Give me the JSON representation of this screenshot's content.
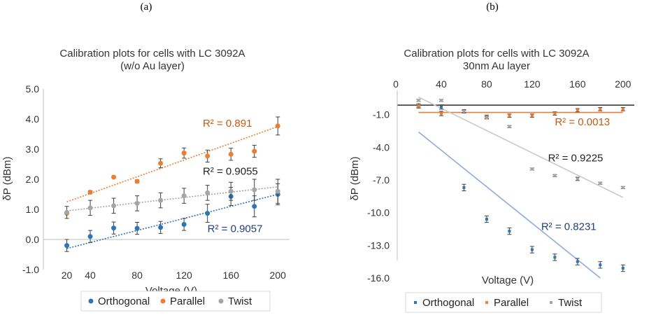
{
  "chart_data": [
    {
      "type": "scatter",
      "panel_label": "(a)",
      "title": "Calibration plots  for cells with LC 3092A",
      "subtitle": "(w/o Au layer)",
      "xlabel": "Voltage (V)",
      "ylabel": "δP (dBm)",
      "xlim": [
        0,
        210
      ],
      "ylim": [
        -1.0,
        5.0
      ],
      "x_ticks": [
        20,
        40,
        80,
        120,
        160,
        200
      ],
      "x_tick_labels": [
        "20",
        "40",
        "80",
        "120",
        "160",
        "200"
      ],
      "y_ticks": [
        -1.0,
        0.0,
        1.0,
        2.0,
        3.0,
        4.0,
        5.0
      ],
      "y_tick_labels": [
        "-1.0",
        "0.0",
        "1.0",
        "2.0",
        "3.0",
        "4.0",
        "5.0"
      ],
      "x": [
        20,
        40,
        60,
        80,
        100,
        120,
        140,
        160,
        180,
        200
      ],
      "series": [
        {
          "name": "Orthogonal",
          "color": "#2e75b6",
          "trend_color": "#2e75b6",
          "values": [
            -0.2,
            0.1,
            0.38,
            0.37,
            0.4,
            0.5,
            0.87,
            1.43,
            1.1,
            1.5
          ],
          "errors": [
            0.2,
            0.2,
            0.2,
            0.2,
            0.2,
            0.2,
            0.3,
            0.3,
            0.35,
            0.35
          ],
          "trend": {
            "x0": 20,
            "y0": -0.3,
            "x1": 200,
            "y1": 1.5
          },
          "r2": "R² = 0.9057",
          "r2_color": "#1f3f7a",
          "r2_pos": [
            140,
            0.25
          ]
        },
        {
          "name": "Parallel",
          "color": "#ed7d31",
          "trend_color": "#ed7d31",
          "values": [
            0.87,
            1.57,
            2.07,
            1.93,
            2.53,
            2.87,
            2.77,
            2.83,
            2.93,
            3.77
          ],
          "errors": [
            0.0,
            0.05,
            0.03,
            0.05,
            0.15,
            0.17,
            0.2,
            0.2,
            0.2,
            0.3
          ],
          "trend": {
            "x0": 20,
            "y0": 1.25,
            "x1": 200,
            "y1": 3.75
          },
          "r2": "R² = 0.891",
          "r2_color": "#c55a11",
          "r2_pos": [
            136,
            3.75
          ]
        },
        {
          "name": "Twist",
          "color": "#a5a5a5",
          "trend_color": "#a5a5a5",
          "values": [
            0.9,
            1.05,
            1.12,
            1.2,
            1.3,
            1.45,
            1.55,
            1.6,
            1.65,
            1.6
          ],
          "errors": [
            0.2,
            0.25,
            0.25,
            0.25,
            0.25,
            0.25,
            0.25,
            0.3,
            0.35,
            0.4
          ],
          "trend": {
            "x0": 20,
            "y0": 0.95,
            "x1": 200,
            "y1": 1.75
          },
          "r2": "R² = 0.9055",
          "r2_color": "#222222",
          "r2_pos": [
            136,
            2.15
          ]
        }
      ],
      "legend": [
        "Orthogonal",
        "Parallel",
        "Twist"
      ]
    },
    {
      "type": "scatter",
      "panel_label": "(b)",
      "title": "Calibration plots  for cells with LC 3092A",
      "subtitle": "30nm Au layer",
      "xlabel": "Voltage (V)",
      "ylabel": "δP (dBm)",
      "xlim": [
        0,
        210
      ],
      "ylim": [
        -16.0,
        2.0
      ],
      "x_axis_position": "top",
      "x_ticks": [
        0,
        40,
        80,
        120,
        160,
        200
      ],
      "x_tick_labels": [
        "0",
        "40",
        "80",
        "120",
        "160",
        "200"
      ],
      "y_ticks": [
        -1.0,
        -4.0,
        -7.0,
        -10.0,
        -13.0,
        -16.0
      ],
      "y_tick_labels": [
        "-1.0",
        "-4.0",
        "-7.0",
        "-10.0",
        "-13.0",
        "-16.0"
      ],
      "x": [
        20,
        40,
        60,
        80,
        100,
        120,
        140,
        160,
        180,
        200
      ],
      "series": [
        {
          "name": "Orthogonal",
          "color": "#2e75b6",
          "trend_color": "#8faadc",
          "values": [
            -0.2,
            -0.3,
            -7.7,
            -10.6,
            -11.7,
            -13.4,
            -14.1,
            -14.5,
            -14.8,
            -15.1
          ],
          "errors": [
            0.1,
            0.2,
            0.3,
            0.3,
            0.3,
            0.3,
            0.3,
            0.3,
            0.3,
            0.3
          ],
          "trend": {
            "x0": 20,
            "y0": -2.6,
            "x1": 180,
            "y1": -16.0
          },
          "r2": "R² = 0.8231",
          "r2_color": "#1f3f7a",
          "r2_pos": [
            128,
            -11.6
          ]
        },
        {
          "name": "Parallel",
          "color": "#ed7d31",
          "trend_color": "#ed7d31",
          "values": [
            -0.2,
            -0.9,
            -0.7,
            -1.2,
            -1.1,
            -1.1,
            -0.9,
            -0.6,
            -0.5,
            -0.5
          ],
          "errors": [
            0.2,
            0.2,
            0.15,
            0.15,
            0.15,
            0.15,
            0.15,
            0.15,
            0.15,
            0.15
          ],
          "trend": {
            "x0": 20,
            "y0": -0.8,
            "x1": 200,
            "y1": -0.8
          },
          "r2": "R² = 0.0013",
          "r2_color": "#c55a11",
          "r2_pos": [
            140,
            -2.0
          ]
        },
        {
          "name": "Twist",
          "color": "#a5a5a5",
          "trend_color": "#c9c9c9",
          "values": [
            0.3,
            0.3,
            -0.7,
            -1.3,
            -2.1,
            -6.0,
            -6.6,
            -6.9,
            -7.3,
            -7.7
          ],
          "errors": [
            0.1,
            0.1,
            0.1,
            0.1,
            0.1,
            0.1,
            0.1,
            0.15,
            0.1,
            0.1
          ],
          "trend": {
            "x0": 20,
            "y0": 0.6,
            "x1": 200,
            "y1": -8.6
          },
          "r2": "R² = 0.9225",
          "r2_color": "#222222",
          "r2_pos": [
            134,
            -5.3
          ]
        }
      ],
      "legend": [
        "Orthogonal",
        "Parallel",
        "Twist"
      ]
    }
  ]
}
